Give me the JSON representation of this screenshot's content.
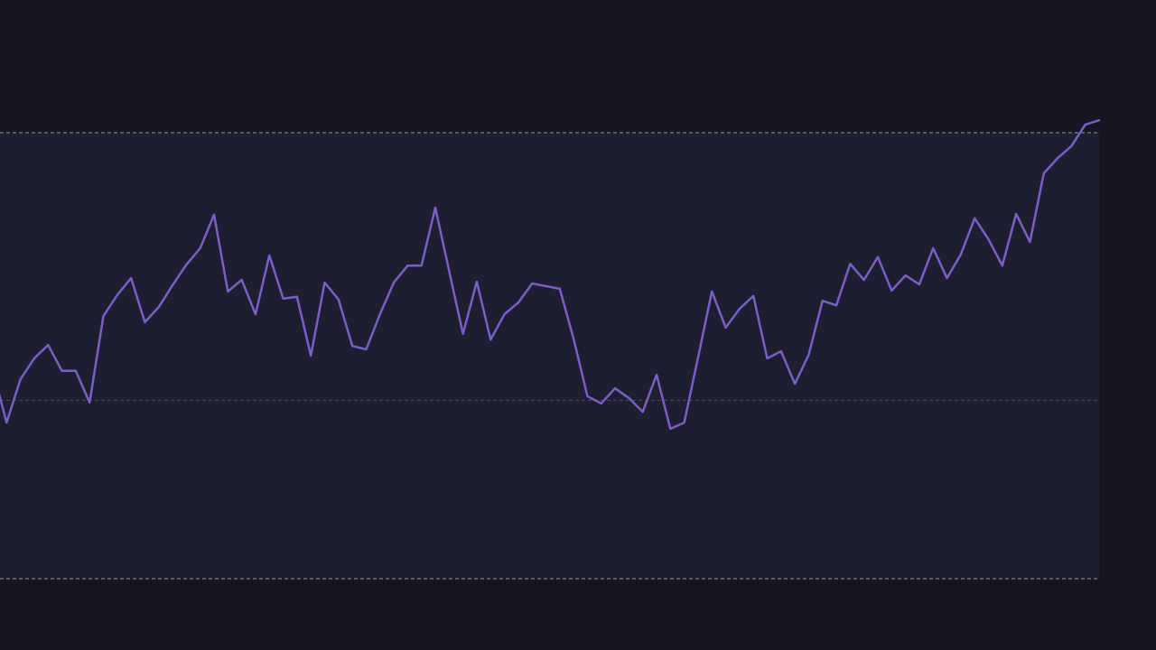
{
  "chart_data": {
    "type": "line",
    "color": "#7b5fc7",
    "grid": true,
    "ylim": [
      0,
      100
    ],
    "yticks": [
      0,
      40,
      100
    ],
    "values": [
      46.8,
      35.0,
      44.7,
      49.4,
      52.4,
      46.6,
      46.6,
      39.5,
      58.9,
      63.6,
      67.4,
      57.5,
      60.9,
      65.8,
      70.4,
      74.1,
      81.6,
      64.4,
      67.0,
      59.3,
      72.5,
      62.8,
      63.2,
      50.0,
      66.4,
      62.6,
      52.2,
      51.4,
      59.3,
      66.4,
      70.2,
      70.2,
      83.2,
      69.0,
      54.9,
      66.6,
      53.6,
      59.3,
      61.9,
      66.2,
      65.6,
      65.0,
      53.8,
      40.9,
      39.3,
      42.7,
      40.5,
      37.4,
      45.7,
      33.6,
      35.0,
      49.6,
      64.4,
      56.3,
      60.5,
      63.4,
      49.4,
      51.0,
      43.7,
      50.2,
      62.3,
      61.3,
      70.6,
      67.0,
      72.1,
      64.6,
      68.0,
      66.0,
      74.1,
      67.4,
      72.7,
      80.8,
      76.1,
      70.2,
      81.8,
      75.5,
      90.9,
      94.3,
      97.0,
      101.8,
      102.8
    ]
  }
}
